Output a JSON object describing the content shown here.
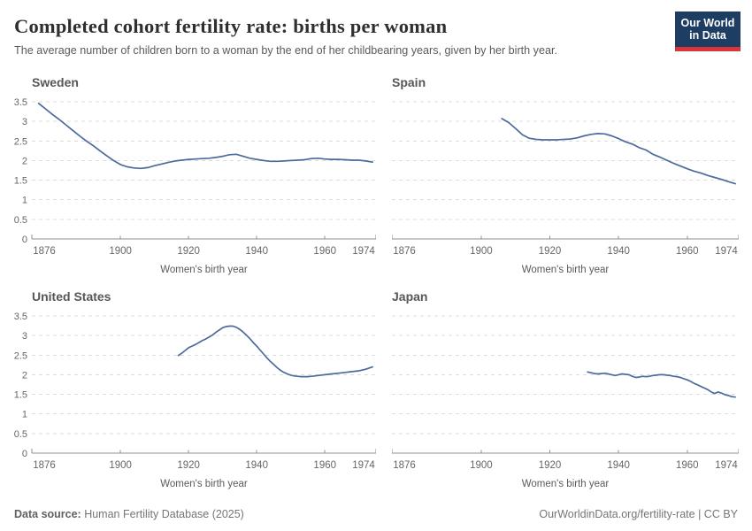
{
  "header": {
    "title": "Completed cohort fertility rate: births per woman",
    "subtitle": "The average number of children born to a woman by the end of her childbearing years, given by her birth year.",
    "logo": {
      "line1": "Our World",
      "line2": "in Data"
    }
  },
  "footer": {
    "source_label": "Data source:",
    "source_value": " Human Fertility Database (2025)",
    "url": "OurWorldinData.org/fertility-rate",
    "separator": " | ",
    "license": "CC BY"
  },
  "colors": {
    "line": "#4c6a9c",
    "grid": "#dcdcdc",
    "axis": "#8f8f8f",
    "tick_text": "#666666",
    "panel_title": "#565656",
    "logo_navy": "#1d3d63",
    "logo_red": "#d8353b"
  },
  "chart_data": [
    {
      "type": "line",
      "title": "Sweden",
      "xlabel": "Women's birth year",
      "ylabel": "",
      "xlim": [
        1874,
        1975
      ],
      "ylim": [
        0,
        3.5
      ],
      "x_ticks": [
        1876,
        1900,
        1920,
        1940,
        1960,
        1974
      ],
      "y_ticks": [
        0,
        0.5,
        1,
        1.5,
        2,
        2.5,
        3,
        3.5
      ],
      "show_y_axis_labels": true,
      "grid": true,
      "legend": "none",
      "series": [
        {
          "name": "Sweden",
          "color": "#4c6a9c",
          "points": [
            [
              1876,
              3.46
            ],
            [
              1878,
              3.32
            ],
            [
              1880,
              3.18
            ],
            [
              1882,
              3.05
            ],
            [
              1884,
              2.91
            ],
            [
              1886,
              2.77
            ],
            [
              1888,
              2.63
            ],
            [
              1890,
              2.5
            ],
            [
              1892,
              2.38
            ],
            [
              1894,
              2.25
            ],
            [
              1896,
              2.12
            ],
            [
              1898,
              2.0
            ],
            [
              1900,
              1.9
            ],
            [
              1902,
              1.84
            ],
            [
              1904,
              1.81
            ],
            [
              1906,
              1.8
            ],
            [
              1908,
              1.82
            ],
            [
              1910,
              1.87
            ],
            [
              1912,
              1.91
            ],
            [
              1914,
              1.95
            ],
            [
              1916,
              1.99
            ],
            [
              1918,
              2.01
            ],
            [
              1920,
              2.03
            ],
            [
              1922,
              2.04
            ],
            [
              1924,
              2.05
            ],
            [
              1926,
              2.06
            ],
            [
              1928,
              2.08
            ],
            [
              1930,
              2.11
            ],
            [
              1932,
              2.15
            ],
            [
              1934,
              2.16
            ],
            [
              1936,
              2.11
            ],
            [
              1938,
              2.06
            ],
            [
              1940,
              2.03
            ],
            [
              1942,
              2.0
            ],
            [
              1944,
              1.98
            ],
            [
              1946,
              1.98
            ],
            [
              1948,
              1.99
            ],
            [
              1950,
              2.0
            ],
            [
              1952,
              2.01
            ],
            [
              1954,
              2.02
            ],
            [
              1956,
              2.05
            ],
            [
              1958,
              2.06
            ],
            [
              1960,
              2.04
            ],
            [
              1962,
              2.03
            ],
            [
              1964,
              2.03
            ],
            [
              1966,
              2.02
            ],
            [
              1968,
              2.01
            ],
            [
              1970,
              2.01
            ],
            [
              1972,
              1.99
            ],
            [
              1974,
              1.96
            ]
          ]
        }
      ]
    },
    {
      "type": "line",
      "title": "Spain",
      "xlabel": "Women's birth year",
      "ylabel": "",
      "xlim": [
        1874,
        1975
      ],
      "ylim": [
        0,
        3.5
      ],
      "x_ticks": [
        1876,
        1900,
        1920,
        1940,
        1960,
        1974
      ],
      "y_ticks": [
        0,
        0.5,
        1,
        1.5,
        2,
        2.5,
        3,
        3.5
      ],
      "show_y_axis_labels": false,
      "grid": true,
      "legend": "none",
      "series": [
        {
          "name": "Spain",
          "color": "#4c6a9c",
          "points": [
            [
              1906,
              3.07
            ],
            [
              1908,
              2.97
            ],
            [
              1910,
              2.82
            ],
            [
              1912,
              2.66
            ],
            [
              1914,
              2.57
            ],
            [
              1916,
              2.54
            ],
            [
              1918,
              2.53
            ],
            [
              1920,
              2.53
            ],
            [
              1922,
              2.53
            ],
            [
              1924,
              2.54
            ],
            [
              1926,
              2.55
            ],
            [
              1928,
              2.58
            ],
            [
              1930,
              2.63
            ],
            [
              1932,
              2.67
            ],
            [
              1934,
              2.69
            ],
            [
              1936,
              2.68
            ],
            [
              1938,
              2.63
            ],
            [
              1940,
              2.56
            ],
            [
              1942,
              2.48
            ],
            [
              1944,
              2.42
            ],
            [
              1946,
              2.33
            ],
            [
              1948,
              2.27
            ],
            [
              1950,
              2.16
            ],
            [
              1952,
              2.09
            ],
            [
              1954,
              2.01
            ],
            [
              1956,
              1.93
            ],
            [
              1958,
              1.86
            ],
            [
              1960,
              1.79
            ],
            [
              1962,
              1.73
            ],
            [
              1964,
              1.68
            ],
            [
              1966,
              1.62
            ],
            [
              1968,
              1.57
            ],
            [
              1970,
              1.52
            ],
            [
              1972,
              1.46
            ],
            [
              1974,
              1.41
            ]
          ]
        }
      ]
    },
    {
      "type": "line",
      "title": "United States",
      "xlabel": "Women's birth year",
      "ylabel": "",
      "xlim": [
        1874,
        1975
      ],
      "ylim": [
        0,
        3.5
      ],
      "x_ticks": [
        1876,
        1900,
        1920,
        1940,
        1960,
        1974
      ],
      "y_ticks": [
        0,
        0.5,
        1,
        1.5,
        2,
        2.5,
        3,
        3.5
      ],
      "show_y_axis_labels": true,
      "grid": true,
      "legend": "none",
      "series": [
        {
          "name": "United States",
          "color": "#4c6a9c",
          "points": [
            [
              1917,
              2.49
            ],
            [
              1918,
              2.55
            ],
            [
              1919,
              2.62
            ],
            [
              1920,
              2.69
            ],
            [
              1921,
              2.73
            ],
            [
              1922,
              2.77
            ],
            [
              1923,
              2.82
            ],
            [
              1924,
              2.87
            ],
            [
              1925,
              2.91
            ],
            [
              1926,
              2.96
            ],
            [
              1927,
              3.01
            ],
            [
              1928,
              3.08
            ],
            [
              1929,
              3.14
            ],
            [
              1930,
              3.2
            ],
            [
              1931,
              3.23
            ],
            [
              1932,
              3.24
            ],
            [
              1933,
              3.24
            ],
            [
              1934,
              3.21
            ],
            [
              1935,
              3.16
            ],
            [
              1936,
              3.09
            ],
            [
              1937,
              3.01
            ],
            [
              1938,
              2.92
            ],
            [
              1939,
              2.82
            ],
            [
              1940,
              2.73
            ],
            [
              1941,
              2.63
            ],
            [
              1942,
              2.53
            ],
            [
              1943,
              2.43
            ],
            [
              1944,
              2.34
            ],
            [
              1945,
              2.26
            ],
            [
              1946,
              2.18
            ],
            [
              1947,
              2.11
            ],
            [
              1948,
              2.06
            ],
            [
              1949,
              2.02
            ],
            [
              1950,
              1.99
            ],
            [
              1951,
              1.97
            ],
            [
              1952,
              1.96
            ],
            [
              1953,
              1.95
            ],
            [
              1954,
              1.95
            ],
            [
              1955,
              1.95
            ],
            [
              1956,
              1.96
            ],
            [
              1957,
              1.97
            ],
            [
              1958,
              1.98
            ],
            [
              1960,
              2.0
            ],
            [
              1962,
              2.02
            ],
            [
              1964,
              2.04
            ],
            [
              1966,
              2.06
            ],
            [
              1968,
              2.08
            ],
            [
              1970,
              2.1
            ],
            [
              1972,
              2.14
            ],
            [
              1974,
              2.2
            ]
          ]
        }
      ]
    },
    {
      "type": "line",
      "title": "Japan",
      "xlabel": "Women's birth year",
      "ylabel": "",
      "xlim": [
        1874,
        1975
      ],
      "ylim": [
        0,
        3.5
      ],
      "x_ticks": [
        1876,
        1900,
        1920,
        1940,
        1960,
        1974
      ],
      "y_ticks": [
        0,
        0.5,
        1,
        1.5,
        2,
        2.5,
        3,
        3.5
      ],
      "show_y_axis_labels": false,
      "grid": true,
      "legend": "none",
      "series": [
        {
          "name": "Japan",
          "color": "#4c6a9c",
          "points": [
            [
              1931,
              2.07
            ],
            [
              1932,
              2.05
            ],
            [
              1933,
              2.03
            ],
            [
              1934,
              2.02
            ],
            [
              1935,
              2.03
            ],
            [
              1936,
              2.04
            ],
            [
              1937,
              2.02
            ],
            [
              1938,
              2.0
            ],
            [
              1939,
              1.98
            ],
            [
              1940,
              2.0
            ],
            [
              1941,
              2.02
            ],
            [
              1942,
              2.01
            ],
            [
              1943,
              2.0
            ],
            [
              1944,
              1.96
            ],
            [
              1945,
              1.93
            ],
            [
              1946,
              1.94
            ],
            [
              1947,
              1.96
            ],
            [
              1948,
              1.95
            ],
            [
              1949,
              1.96
            ],
            [
              1950,
              1.98
            ],
            [
              1951,
              1.99
            ],
            [
              1952,
              2.0
            ],
            [
              1953,
              2.0
            ],
            [
              1954,
              1.99
            ],
            [
              1955,
              1.98
            ],
            [
              1956,
              1.96
            ],
            [
              1957,
              1.95
            ],
            [
              1958,
              1.93
            ],
            [
              1959,
              1.9
            ],
            [
              1960,
              1.87
            ],
            [
              1961,
              1.83
            ],
            [
              1962,
              1.78
            ],
            [
              1963,
              1.74
            ],
            [
              1964,
              1.7
            ],
            [
              1965,
              1.66
            ],
            [
              1966,
              1.62
            ],
            [
              1967,
              1.56
            ],
            [
              1968,
              1.52
            ],
            [
              1969,
              1.56
            ],
            [
              1970,
              1.53
            ],
            [
              1971,
              1.49
            ],
            [
              1972,
              1.47
            ],
            [
              1973,
              1.44
            ],
            [
              1974,
              1.43
            ]
          ]
        }
      ]
    }
  ]
}
